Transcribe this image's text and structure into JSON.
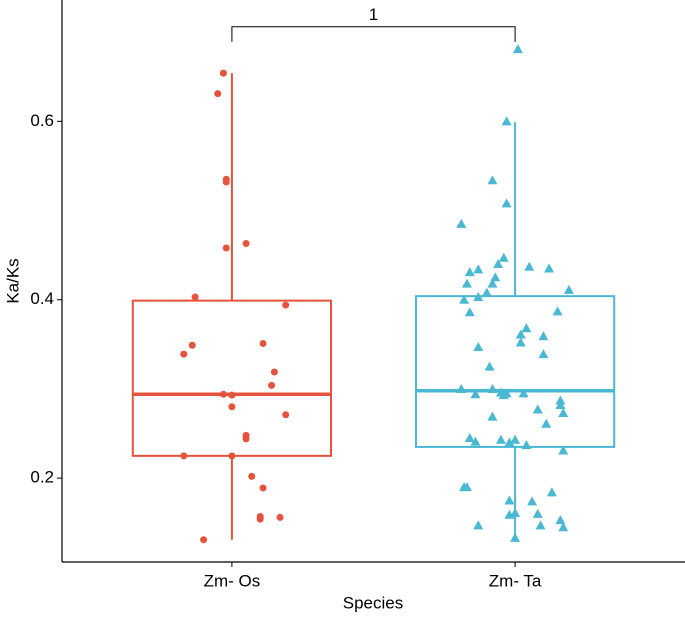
{
  "chart_data": {
    "type": "boxplot",
    "x_label": "Species",
    "y_label": "Ka/Ks",
    "categories": [
      "Zm- Os",
      "Zm- Ta"
    ],
    "xlim": [
      0.4,
      2.6
    ],
    "ylim": [
      0.106,
      0.736
    ],
    "yticks": [
      0.2,
      0.4,
      0.6
    ],
    "grid": false,
    "bracket": {
      "label": "1",
      "y": 0.706,
      "tip": 0.689
    },
    "series": [
      {
        "color": "#e5533c",
        "marker": "circle",
        "box": {
          "whislo": 0.131,
          "q1": 0.225,
          "median": 0.294,
          "q3": 0.399,
          "whishi": 0.654
        },
        "x": [
          0.97,
          0.95,
          0.98,
          0.98,
          1.05,
          0.98,
          0.87,
          1.19,
          0.86,
          0.83,
          1.11,
          1.15,
          1.14,
          0.97,
          1.0,
          1.19,
          1.0,
          1.05,
          1.05,
          0.83,
          1.0,
          1.07,
          1.11,
          1.1,
          1.1,
          1.17,
          0.9
        ],
        "values": [
          0.654,
          0.631,
          0.535,
          0.532,
          0.463,
          0.458,
          0.403,
          0.394,
          0.349,
          0.339,
          0.351,
          0.319,
          0.304,
          0.294,
          0.293,
          0.271,
          0.28,
          0.248,
          0.244,
          0.225,
          0.225,
          0.202,
          0.189,
          0.157,
          0.154,
          0.156,
          0.131
        ]
      },
      {
        "color": "#4bb8d3",
        "marker": "triangle",
        "box": {
          "whislo": 0.131,
          "q1": 0.235,
          "median": 0.298,
          "q3": 0.404,
          "whishi": 0.599
        },
        "x": [
          2.01,
          1.97,
          1.92,
          1.97,
          1.81,
          1.96,
          1.94,
          1.87,
          2.05,
          2.12,
          1.84,
          1.93,
          1.83,
          1.92,
          2.19,
          1.9,
          1.87,
          1.82,
          2.15,
          1.84,
          2.04,
          2.02,
          2.1,
          2.02,
          1.87,
          2.1,
          1.91,
          1.81,
          1.92,
          1.95,
          1.96,
          1.97,
          2.03,
          1.86,
          2.16,
          2.16,
          2.08,
          2.17,
          1.92,
          2.11,
          1.84,
          1.86,
          1.95,
          2.0,
          2.04,
          2.17,
          1.98,
          1.82,
          1.83,
          2.13,
          1.98,
          2.06,
          1.98,
          2.0,
          2.08,
          2.09,
          2.16,
          1.87,
          2.0,
          2.17
        ],
        "values": [
          0.681,
          0.6,
          0.534,
          0.508,
          0.485,
          0.447,
          0.44,
          0.434,
          0.437,
          0.435,
          0.431,
          0.425,
          0.418,
          0.418,
          0.411,
          0.408,
          0.403,
          0.4,
          0.387,
          0.386,
          0.368,
          0.361,
          0.359,
          0.352,
          0.347,
          0.339,
          0.325,
          0.3,
          0.3,
          0.296,
          0.293,
          0.295,
          0.295,
          0.294,
          0.287,
          0.282,
          0.277,
          0.273,
          0.269,
          0.261,
          0.245,
          0.241,
          0.243,
          0.243,
          0.237,
          0.231,
          0.24,
          0.19,
          0.19,
          0.184,
          0.175,
          0.174,
          0.159,
          0.161,
          0.16,
          0.147,
          0.153,
          0.147,
          0.133,
          0.145
        ]
      }
    ]
  }
}
